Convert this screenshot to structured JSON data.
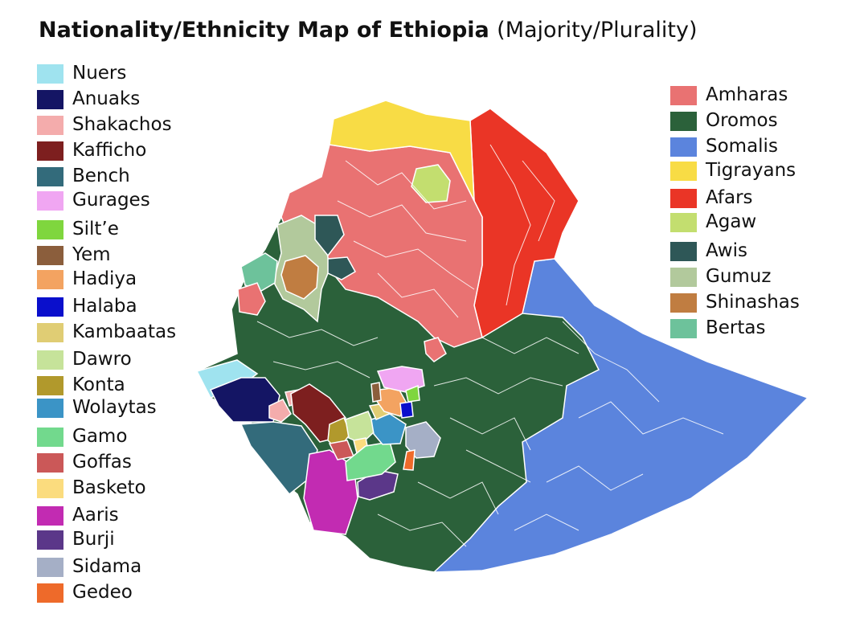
{
  "title": "Nationality/Ethnicity Map of Ethiopia",
  "subtitle": "(Majority/Plurality)",
  "legend_left": [
    {
      "label": "Nuers",
      "color": "#9fe3ef"
    },
    {
      "label": "Anuaks",
      "color": "#141564"
    },
    {
      "label": "Shakachos",
      "color": "#f4acac"
    },
    {
      "label": "Kafficho",
      "color": "#7d1f1f"
    },
    {
      "label": "Bench",
      "color": "#336b7b"
    },
    {
      "label": "Gurages",
      "color": "#f0a6f2"
    },
    {
      "label": "Silt’e",
      "color": "#7fd63e"
    },
    {
      "label": "Yem",
      "color": "#8b5e3c"
    },
    {
      "label": "Hadiya",
      "color": "#f3a361"
    },
    {
      "label": "Halaba",
      "color": "#0a0fcc"
    },
    {
      "label": "Kambaatas",
      "color": "#e0cd74"
    },
    {
      "label": "Dawro",
      "color": "#c6e39a"
    },
    {
      "label": "Konta",
      "color": "#b1992c"
    },
    {
      "label": "Wolaytas",
      "color": "#3b94c6"
    },
    {
      "label": "Gamo",
      "color": "#72d98d"
    },
    {
      "label": "Goffas",
      "color": "#cb5858"
    },
    {
      "label": "Basketo",
      "color": "#fbdc7e"
    },
    {
      "label": "Aaris",
      "color": "#c22bb2"
    },
    {
      "label": "Burji",
      "color": "#5b3789"
    },
    {
      "label": "Sidama",
      "color": "#a5afc6"
    },
    {
      "label": "Gedeo",
      "color": "#ee6a2a"
    }
  ],
  "legend_right": [
    {
      "label": "Amharas",
      "color": "#e97272"
    },
    {
      "label": "Oromos",
      "color": "#2b613a"
    },
    {
      "label": "Somalis",
      "color": "#5b84dd"
    },
    {
      "label": "Tigrayans",
      "color": "#f8dc45"
    },
    {
      "label": "Afars",
      "color": "#ea3526"
    },
    {
      "label": "Agaw",
      "color": "#c3de6f"
    },
    {
      "label": "Awis",
      "color": "#2e5757"
    },
    {
      "label": "Gumuz",
      "color": "#b2c99c"
    },
    {
      "label": "Shinashas",
      "color": "#c07d41"
    },
    {
      "label": "Bertas",
      "color": "#6dc29b"
    }
  ]
}
